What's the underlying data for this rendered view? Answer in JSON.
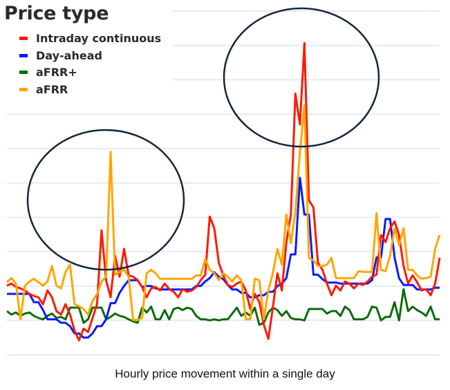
{
  "chart_data": {
    "type": "line",
    "title": "",
    "caption": "Hourly price movement within a single day",
    "xlabel": "",
    "ylabel": "",
    "ylim": [
      0,
      10
    ],
    "grid": true,
    "legend": {
      "title": "Price type",
      "placement": "top-left"
    },
    "series": [
      {
        "name": "Intraday continuous",
        "color": "#ff1a00",
        "values": [
          2.01,
          2.07,
          1.97,
          1.93,
          1.87,
          1.77,
          1.71,
          1.67,
          1.47,
          1.87,
          1.67,
          1.27,
          1.17,
          1.47,
          1.17,
          0.7,
          0.42,
          0.76,
          0.66,
          1.07,
          1.47,
          3.62,
          2.17,
          1.67,
          2.88,
          2.27,
          3.08,
          2.31,
          2.27,
          2.17,
          1.97,
          1.67,
          1.93,
          1.97,
          1.87,
          2.07,
          1.91,
          1.83,
          1.67,
          1.91,
          1.83,
          1.87,
          1.97,
          2.17,
          2.33,
          4.02,
          3.68,
          2.68,
          2.31,
          2.03,
          1.97,
          2.07,
          2.13,
          1.87,
          1.33,
          1.77,
          1.53,
          0.87,
          0.46,
          1.37,
          2.37,
          1.87,
          3.28,
          4.08,
          7.6,
          6.7,
          9.07,
          4.49,
          4.29,
          2.68,
          2.47,
          2.07,
          1.73,
          2.01,
          1.87,
          2.13,
          2.07,
          1.93,
          2.07,
          2.03,
          2.13,
          2.27,
          2.33,
          3.48,
          3.28,
          3.68,
          3.88,
          3.48,
          2.58,
          2.07,
          2.31,
          2.11,
          1.87,
          1.91,
          1.73,
          2.07,
          2.82
        ]
      },
      {
        "name": "Day-ahead",
        "color": "#0a1aff",
        "values": [
          1.77,
          1.77,
          1.77,
          1.77,
          1.77,
          1.77,
          1.53,
          1.53,
          1.3,
          1.03,
          1.03,
          1.03,
          0.93,
          0.93,
          0.83,
          0.62,
          0.62,
          0.5,
          0.5,
          0.62,
          0.83,
          0.83,
          1.03,
          1.5,
          1.5,
          1.8,
          2.0,
          2.17,
          2.17,
          2.17,
          1.97,
          2.0,
          2.0,
          1.93,
          1.9,
          1.9,
          1.9,
          1.9,
          1.9,
          1.9,
          1.9,
          1.9,
          2.0,
          2.0,
          2.13,
          2.23,
          2.4,
          2.27,
          2.2,
          2.03,
          1.9,
          1.9,
          1.8,
          1.8,
          1.67,
          1.67,
          1.73,
          1.73,
          1.83,
          1.83,
          2.0,
          2.07,
          2.23,
          2.92,
          2.92,
          5.15,
          4.08,
          4.08,
          2.33,
          2.33,
          2.2,
          2.1,
          2.1,
          2.1,
          2.07,
          2.07,
          2.07,
          2.07,
          2.07,
          2.07,
          2.07,
          2.17,
          2.83,
          2.83,
          3.95,
          3.95,
          2.83,
          2.23,
          2.03,
          2.03,
          2.03,
          1.9,
          1.9,
          1.9,
          1.9,
          1.95,
          1.95
        ]
      },
      {
        "name": "aFRR+",
        "color": "#0b6b0b",
        "values": [
          1.27,
          1.17,
          1.23,
          1.13,
          1.2,
          1.23,
          1.13,
          1.07,
          1.03,
          1.13,
          1.2,
          1.07,
          1.1,
          1.03,
          1.37,
          1.37,
          1.37,
          0.93,
          1.03,
          1.37,
          1.37,
          1.37,
          1.03,
          1.1,
          1.2,
          1.13,
          1.1,
          1.03,
          0.97,
          0.93,
          1.37,
          1.23,
          1.4,
          1.03,
          1.03,
          1.3,
          1.03,
          1.33,
          1.37,
          1.3,
          1.37,
          1.33,
          1.13,
          1.03,
          1.03,
          1.0,
          1.03,
          1.0,
          1.03,
          1.03,
          1.2,
          1.37,
          1.13,
          1.23,
          1.13,
          1.37,
          0.87,
          0.93,
          1.23,
          1.37,
          1.3,
          1.13,
          1.27,
          1.07,
          1.03,
          1.03,
          1.0,
          1.33,
          1.33,
          1.33,
          1.33,
          1.2,
          1.27,
          1.27,
          1.13,
          1.4,
          1.3,
          1.03,
          1.03,
          1.03,
          1.1,
          1.4,
          1.37,
          1.0,
          1.1,
          1.1,
          1.53,
          1.0,
          1.91,
          1.27,
          1.4,
          1.3,
          1.23,
          1.13,
          1.4,
          1.03,
          1.03
        ]
      },
      {
        "name": "aFRR",
        "color": "#ffa500",
        "values": [
          2.11,
          2.23,
          2.07,
          1.03,
          2.01,
          2.13,
          2.21,
          2.11,
          2.01,
          2.13,
          2.58,
          2.01,
          1.93,
          2.41,
          2.62,
          1.47,
          1.41,
          1.33,
          1.17,
          1.57,
          1.77,
          2.13,
          2.27,
          5.9,
          2.33,
          2.41,
          2.47,
          2.27,
          1.01,
          1.01,
          1.07,
          2.37,
          2.47,
          2.37,
          2.21,
          2.21,
          2.21,
          2.21,
          2.21,
          2.21,
          2.21,
          2.21,
          2.31,
          2.31,
          2.78,
          2.47,
          2.37,
          2.17,
          2.37,
          2.27,
          2.13,
          2.31,
          2.17,
          1.03,
          1.03,
          2.21,
          2.17,
          1.03,
          1.87,
          2.37,
          3.08,
          2.62,
          4.08,
          3.24,
          4.14,
          5.9,
          7.26,
          2.82,
          2.74,
          2.58,
          2.58,
          2.62,
          2.82,
          2.23,
          2.23,
          2.23,
          2.23,
          2.23,
          2.43,
          2.41,
          2.41,
          2.41,
          4.12,
          2.47,
          2.43,
          2.88,
          3.68,
          3.18,
          3.68,
          2.47,
          2.47,
          2.31,
          2.21,
          2.23,
          2.27,
          3.08,
          3.48
        ]
      }
    ],
    "annotations": [
      {
        "type": "ellipse",
        "color": "#13263a",
        "highlights": "aFRR spike"
      },
      {
        "type": "ellipse",
        "color": "#13263a",
        "highlights": "Intraday continuous peak"
      }
    ]
  }
}
